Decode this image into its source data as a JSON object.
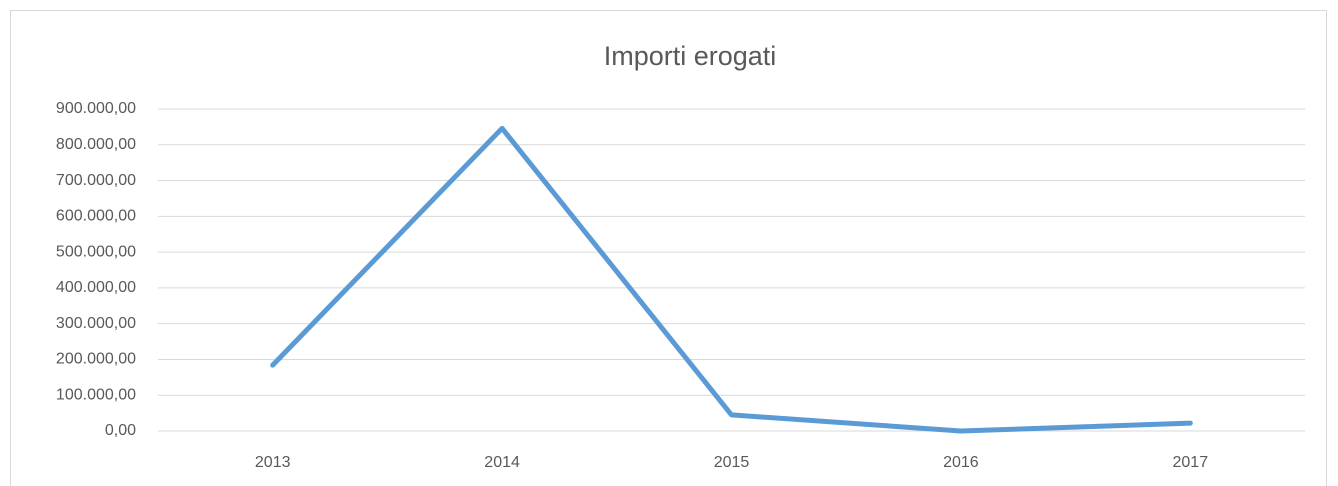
{
  "chart_data": {
    "type": "line",
    "title": "Importi erogati",
    "categories": [
      "2013",
      "2014",
      "2015",
      "2016",
      "2017"
    ],
    "series": [
      {
        "name": "Importi erogati",
        "color": "#5b9bd5",
        "values": [
          184000,
          846000,
          45000,
          0,
          22000
        ]
      }
    ],
    "ylim": [
      0,
      900000
    ],
    "yticks": [
      {
        "value": 0,
        "label": "0,00"
      },
      {
        "value": 100000,
        "label": "100.000,00"
      },
      {
        "value": 200000,
        "label": "200.000,00"
      },
      {
        "value": 300000,
        "label": "300.000,00"
      },
      {
        "value": 400000,
        "label": "400.000,00"
      },
      {
        "value": 500000,
        "label": "500.000,00"
      },
      {
        "value": 600000,
        "label": "600.000,00"
      },
      {
        "value": 700000,
        "label": "700.000,00"
      },
      {
        "value": 800000,
        "label": "800.000,00"
      },
      {
        "value": 900000,
        "label": "900.000,00"
      }
    ],
    "grid": true
  }
}
